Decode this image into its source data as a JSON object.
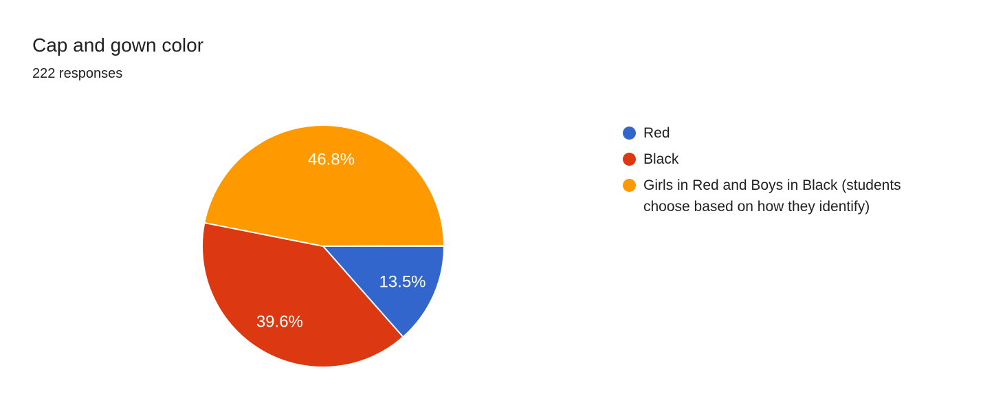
{
  "header": {
    "title": "Cap and gown color",
    "subtitle": "222 responses"
  },
  "chart_data": {
    "type": "pie",
    "title": "Cap and gown color",
    "subtitle": "222 responses",
    "legend_position": "right",
    "direction": "clockwise",
    "start_angle_deg_from_east": 0,
    "slice_border_color": "#ffffff",
    "slice_label_color": "#ffffff",
    "slices": [
      {
        "label": "Red",
        "percent": 13.5,
        "data_label": "13.5%",
        "color": "#3366CC"
      },
      {
        "label": "Black",
        "percent": 39.6,
        "data_label": "39.6%",
        "color": "#DC3912"
      },
      {
        "label": "Girls in Red and Boys in Black (students choose based on how they identify)",
        "label_lines": [
          "Girls in Red and Boys in Black (students",
          "choose based on how they identify)"
        ],
        "percent": 46.8,
        "data_label": "46.8%",
        "color": "#FF9900"
      }
    ]
  }
}
